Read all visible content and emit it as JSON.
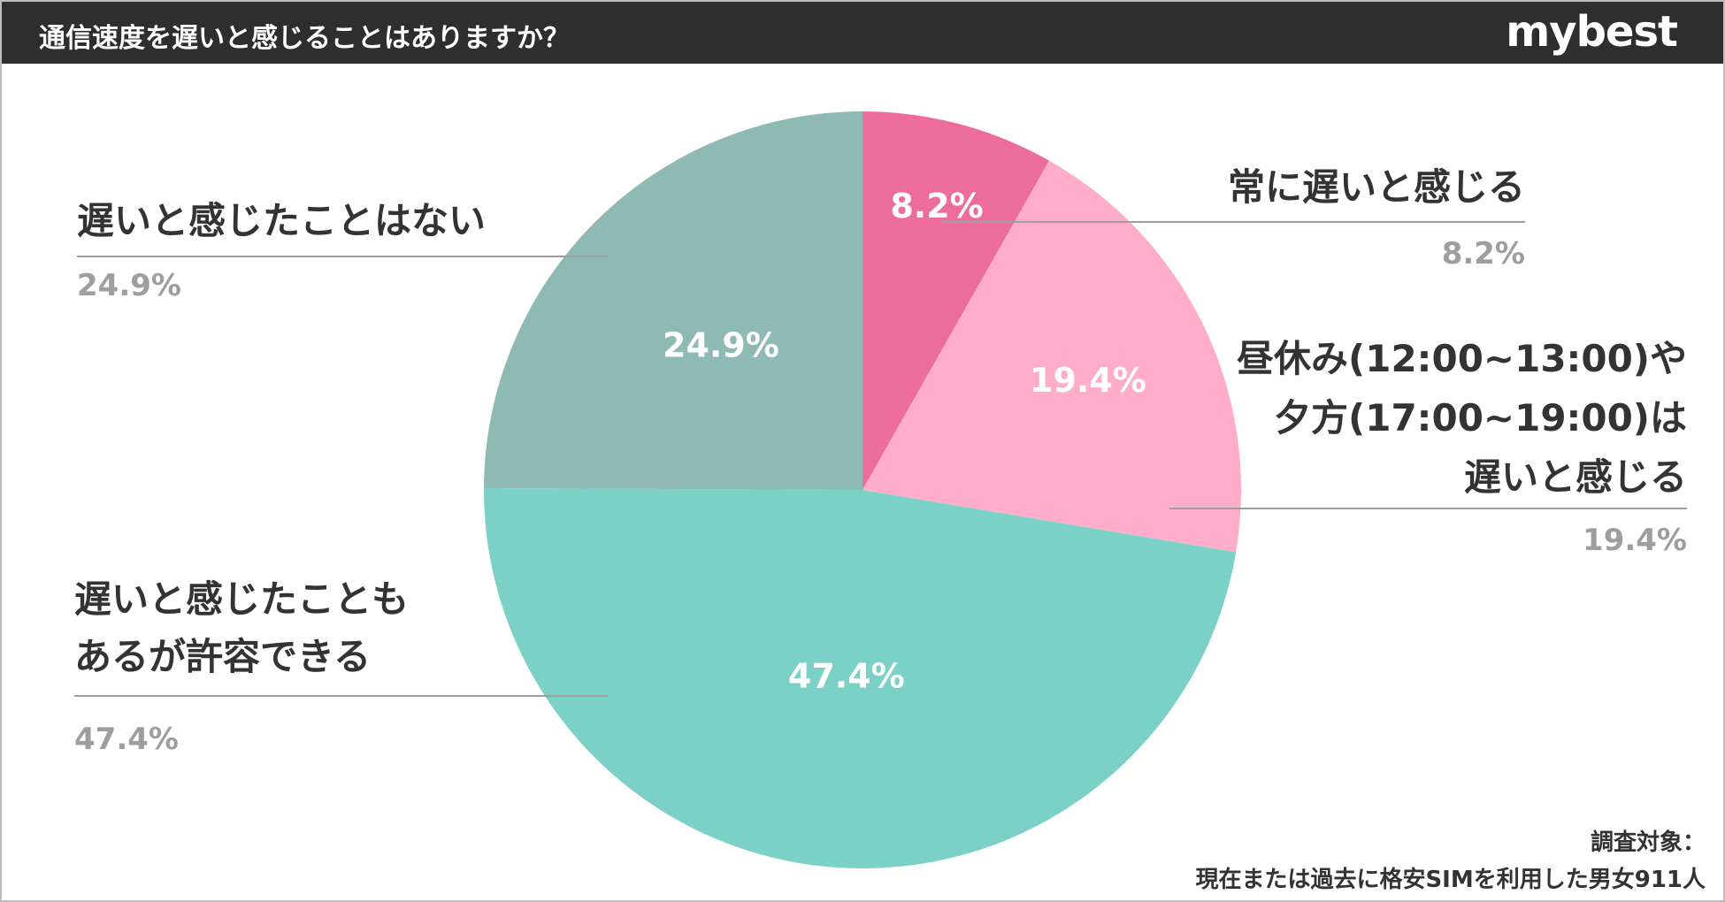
{
  "header": {
    "title": "通信速度を遅いと感じることはありますか？",
    "brand": "mybest"
  },
  "footnote": {
    "line1": "調査対象：",
    "line2": "現在または過去に格安SIMを利用した男女911人"
  },
  "colors": {
    "header_bg": "#2e2e2e",
    "slice_always": "#ec6d9b",
    "slice_lunch": "#ffadcb",
    "slice_acceptable": "#7bd1c5",
    "slice_never": "#8fb9b3",
    "leader_line": "#9e9e9e"
  },
  "chart_data": {
    "type": "pie",
    "start_angle_deg": 0,
    "direction": "clockwise",
    "slices": [
      {
        "label_lines": [
          "常に遅いと感じる"
        ],
        "value": 8.2,
        "display": "8.2%",
        "color": "#ec6d9b"
      },
      {
        "label_lines": [
          "昼休み(12:00~13:00)や",
          "夕方(17:00~19:00)は",
          "遅いと感じる"
        ],
        "value": 19.4,
        "display": "19.4%",
        "color": "#ffadcb"
      },
      {
        "label_lines": [
          "遅いと感じたことも",
          "あるが許容できる"
        ],
        "value": 47.4,
        "display": "47.4%",
        "color": "#7bd1c5"
      },
      {
        "label_lines": [
          "遅いと感じたことはない"
        ],
        "value": 24.9,
        "display": "24.9%",
        "color": "#8fb9b3"
      }
    ]
  }
}
